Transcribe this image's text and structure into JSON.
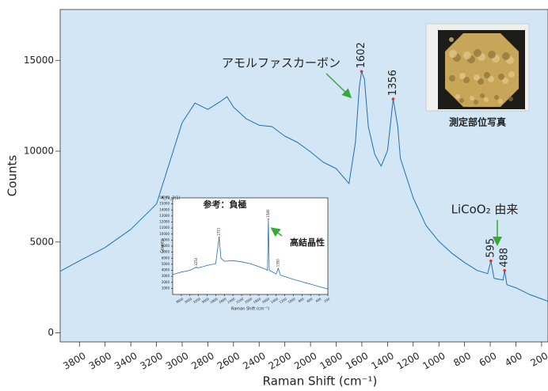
{
  "chart_data": [
    {
      "type": "line",
      "xlabel": "Raman Shift (cm⁻¹)",
      "ylabel": "Counts",
      "xlim": [
        3950,
        150
      ],
      "ylim": [
        -500,
        17800
      ],
      "xticks": [
        3800,
        3600,
        3400,
        3200,
        3000,
        2800,
        2600,
        2400,
        2200,
        2000,
        1800,
        1600,
        1400,
        1200,
        1000,
        800,
        600,
        400,
        200
      ],
      "yticks": [
        0,
        5000,
        10000,
        15000
      ],
      "series": [
        {
          "color": "#1f6fb5",
          "x": [
            3950,
            3800,
            3600,
            3400,
            3200,
            3000,
            2900,
            2800,
            2700,
            2650,
            2600,
            2500,
            2400,
            2300,
            2200,
            2100,
            2000,
            1900,
            1800,
            1700,
            1650,
            1620,
            1602,
            1580,
            1550,
            1500,
            1450,
            1400,
            1356,
            1320,
            1300,
            1200,
            1100,
            1000,
            900,
            800,
            700,
            620,
            595,
            570,
            500,
            488,
            470,
            400,
            300,
            200,
            150
          ],
          "values": [
            3390,
            3960,
            4700,
            5700,
            7090,
            11570,
            12650,
            12300,
            12740,
            13000,
            12430,
            11780,
            11430,
            11350,
            10830,
            10480,
            9960,
            9390,
            9040,
            8220,
            10480,
            13520,
            14390,
            13960,
            11350,
            9830,
            9170,
            10040,
            12870,
            11350,
            9610,
            7430,
            5910,
            5040,
            4390,
            3870,
            3430,
            3260,
            3960,
            3000,
            2910,
            3430,
            2650,
            2480,
            2130,
            1870,
            1740
          ]
        }
      ],
      "peaks": {
        "x": [
          1602,
          1356,
          595,
          488
        ],
        "y": [
          14390,
          12870,
          3960,
          3430
        ],
        "color": "#e03030"
      },
      "annotations": [
        "アモルファスカーボン",
        "LiCoO₂ 由来",
        "測定部位写真"
      ]
    },
    {
      "type": "line",
      "title": "K_fu_2(1)",
      "xlabel": "Raman Shift (cm⁻¹)",
      "ylabel": "Counts",
      "xlim": [
        3800,
        200
      ],
      "ylim": [
        0,
        16000
      ],
      "xticks": [
        3600,
        3400,
        3200,
        3000,
        2800,
        2600,
        2400,
        2200,
        2000,
        1800,
        1600,
        1400,
        1200,
        1000,
        800,
        600,
        400,
        200
      ],
      "yticks": [
        1000,
        2000,
        3000,
        4000,
        5000,
        6000,
        7000,
        8000,
        9000,
        10000,
        11000,
        12000,
        13000,
        14000,
        15000,
        16000
      ],
      "series": [
        {
          "color": "#1f6fb5",
          "x": [
            3800,
            3600,
            3400,
            3253,
            3200,
            3000,
            2800,
            2721,
            2680,
            2600,
            2400,
            2200,
            2000,
            1800,
            1650,
            1600,
            1580,
            1560,
            1400,
            1350,
            1300,
            1000,
            800,
            600,
            400,
            200
          ],
          "values": [
            3300,
            3700,
            4000,
            4500,
            4400,
            4800,
            5100,
            9500,
            6000,
            5500,
            5600,
            5400,
            5100,
            4600,
            4200,
            4000,
            12500,
            4000,
            3400,
            4300,
            3200,
            2500,
            2100,
            1700,
            1300,
            900
          ]
        }
      ],
      "peaks": {
        "x": [
          3253,
          2721,
          1580,
          1350
        ],
        "y": [
          4500,
          9500,
          12500,
          4300
        ],
        "color": "#e03030"
      },
      "annotations": [
        "参考：負極",
        "高結晶性"
      ]
    }
  ]
}
